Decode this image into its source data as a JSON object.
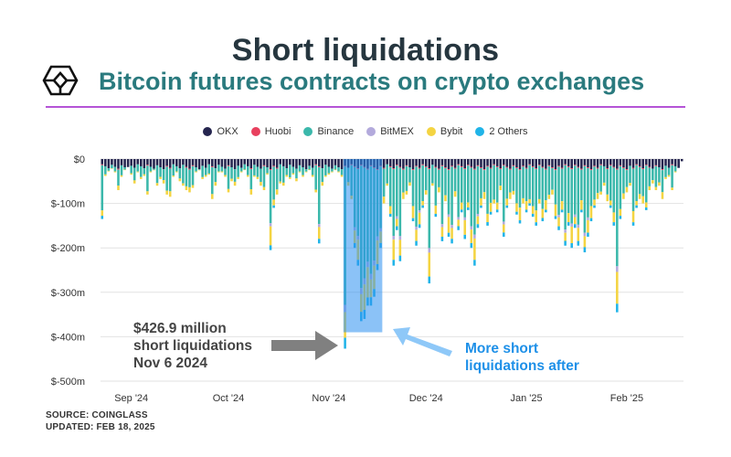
{
  "header": {
    "title": "Short liquidations",
    "subtitle": "Bitcoin futures contracts on crypto exchanges"
  },
  "legend": [
    {
      "label": "OKX",
      "color": "#25254f"
    },
    {
      "label": "Huobi",
      "color": "#e8405e"
    },
    {
      "label": "Binance",
      "color": "#3bb8ab"
    },
    {
      "label": "BitMEX",
      "color": "#b3aadc"
    },
    {
      "label": "Bybit",
      "color": "#f4d442"
    },
    {
      "label": "2 Others",
      "color": "#20b4e8"
    }
  ],
  "footer": {
    "source": "SOURCE: COINGLASS",
    "updated": "UPDATED: FEB 18, 2025"
  },
  "annotations": {
    "peak_line1": "$426.9 million",
    "peak_line2": "short liquidations",
    "peak_line3": "Nov 6 2024",
    "after_line1": "More short",
    "after_line2": "liquidations after"
  },
  "chart_data": {
    "type": "bar",
    "stacked": true,
    "direction": "negative",
    "title": "Short liquidations",
    "subtitle": "Bitcoin futures contracts on crypto exchanges",
    "unit": "USD",
    "ylim": [
      -500,
      0
    ],
    "y_ticks": [
      0,
      -100,
      -200,
      -300,
      -400,
      -500
    ],
    "y_tick_labels": [
      "$0",
      "$-100m",
      "$-200m",
      "$-300m",
      "$-400m",
      "$-500m"
    ],
    "x_tick_labels": [
      "Sep '24",
      "Oct '24",
      "Nov '24",
      "Dec '24",
      "Jan '25",
      "Feb '25"
    ],
    "x_range": [
      "2024-08-23",
      "2025-02-18"
    ],
    "grid": true,
    "legend_position": "top",
    "series_names": [
      "OKX",
      "Huobi",
      "Binance",
      "BitMEX",
      "Bybit",
      "2 Others"
    ],
    "series_colors": [
      "#25254f",
      "#e8405e",
      "#3bb8ab",
      "#b3aadc",
      "#f4d442",
      "#20b4e8"
    ],
    "highlight": {
      "start": "2024-11-06",
      "end": "2024-11-17",
      "peak_date": "2024-11-06",
      "peak_value": -426.9
    },
    "days": [
      {
        "date": "2024-08-23",
        "total": -135
      },
      {
        "date": "2024-08-24",
        "total": -38
      },
      {
        "date": "2024-08-25",
        "total": -28
      },
      {
        "date": "2024-08-26",
        "total": -22
      },
      {
        "date": "2024-08-27",
        "total": -30
      },
      {
        "date": "2024-08-28",
        "total": -70
      },
      {
        "date": "2024-08-29",
        "total": -40
      },
      {
        "date": "2024-08-30",
        "total": -25
      },
      {
        "date": "2024-08-31",
        "total": -18
      },
      {
        "date": "2024-09-01",
        "total": -35
      },
      {
        "date": "2024-09-02",
        "total": -55
      },
      {
        "date": "2024-09-03",
        "total": -30
      },
      {
        "date": "2024-09-04",
        "total": -45
      },
      {
        "date": "2024-09-05",
        "total": -38
      },
      {
        "date": "2024-09-06",
        "total": -80
      },
      {
        "date": "2024-09-07",
        "total": -30
      },
      {
        "date": "2024-09-08",
        "total": -25
      },
      {
        "date": "2024-09-09",
        "total": -60
      },
      {
        "date": "2024-09-10",
        "total": -45
      },
      {
        "date": "2024-09-11",
        "total": -55
      },
      {
        "date": "2024-09-12",
        "total": -80
      },
      {
        "date": "2024-09-13",
        "total": -85
      },
      {
        "date": "2024-09-14",
        "total": -40
      },
      {
        "date": "2024-09-15",
        "total": -30
      },
      {
        "date": "2024-09-16",
        "total": -50
      },
      {
        "date": "2024-09-17",
        "total": -60
      },
      {
        "date": "2024-09-18",
        "total": -70
      },
      {
        "date": "2024-09-19",
        "total": -75
      },
      {
        "date": "2024-09-20",
        "total": -65
      },
      {
        "date": "2024-09-21",
        "total": -30
      },
      {
        "date": "2024-09-22",
        "total": -25
      },
      {
        "date": "2024-09-23",
        "total": -45
      },
      {
        "date": "2024-09-24",
        "total": -40
      },
      {
        "date": "2024-09-25",
        "total": -35
      },
      {
        "date": "2024-09-26",
        "total": -90
      },
      {
        "date": "2024-09-27",
        "total": -60
      },
      {
        "date": "2024-09-28",
        "total": -30
      },
      {
        "date": "2024-09-29",
        "total": -30
      },
      {
        "date": "2024-09-30",
        "total": -40
      },
      {
        "date": "2024-10-01",
        "total": -75
      },
      {
        "date": "2024-10-02",
        "total": -50
      },
      {
        "date": "2024-10-03",
        "total": -60
      },
      {
        "date": "2024-10-04",
        "total": -45
      },
      {
        "date": "2024-10-05",
        "total": -30
      },
      {
        "date": "2024-10-06",
        "total": -25
      },
      {
        "date": "2024-10-07",
        "total": -40
      },
      {
        "date": "2024-10-08",
        "total": -80
      },
      {
        "date": "2024-10-09",
        "total": -40
      },
      {
        "date": "2024-10-10",
        "total": -45
      },
      {
        "date": "2024-10-11",
        "total": -60
      },
      {
        "date": "2024-10-12",
        "total": -70
      },
      {
        "date": "2024-10-13",
        "total": -35
      },
      {
        "date": "2024-10-14",
        "total": -205
      },
      {
        "date": "2024-10-15",
        "total": -110
      },
      {
        "date": "2024-10-16",
        "total": -80
      },
      {
        "date": "2024-10-17",
        "total": -55
      },
      {
        "date": "2024-10-18",
        "total": -60
      },
      {
        "date": "2024-10-19",
        "total": -40
      },
      {
        "date": "2024-10-20",
        "total": -45
      },
      {
        "date": "2024-10-21",
        "total": -35
      },
      {
        "date": "2024-10-22",
        "total": -50
      },
      {
        "date": "2024-10-23",
        "total": -30
      },
      {
        "date": "2024-10-24",
        "total": -40
      },
      {
        "date": "2024-10-25",
        "total": -30
      },
      {
        "date": "2024-10-26",
        "total": -25
      },
      {
        "date": "2024-10-27",
        "total": -40
      },
      {
        "date": "2024-10-28",
        "total": -75
      },
      {
        "date": "2024-10-29",
        "total": -190
      },
      {
        "date": "2024-10-30",
        "total": -60
      },
      {
        "date": "2024-10-31",
        "total": -40
      },
      {
        "date": "2024-11-01",
        "total": -35
      },
      {
        "date": "2024-11-02",
        "total": -30
      },
      {
        "date": "2024-11-03",
        "total": -25
      },
      {
        "date": "2024-11-04",
        "total": -30
      },
      {
        "date": "2024-11-05",
        "total": -40
      },
      {
        "date": "2024-11-06",
        "total": -426.9
      },
      {
        "date": "2024-11-07",
        "total": -60
      },
      {
        "date": "2024-11-08",
        "total": -90
      },
      {
        "date": "2024-11-09",
        "total": -200
      },
      {
        "date": "2024-11-10",
        "total": -240
      },
      {
        "date": "2024-11-11",
        "total": -365
      },
      {
        "date": "2024-11-12",
        "total": -360
      },
      {
        "date": "2024-11-13",
        "total": -330
      },
      {
        "date": "2024-11-14",
        "total": -330
      },
      {
        "date": "2024-11-15",
        "total": -310
      },
      {
        "date": "2024-11-16",
        "total": -250
      },
      {
        "date": "2024-11-17",
        "total": -200
      },
      {
        "date": "2024-11-18",
        "total": -100
      },
      {
        "date": "2024-11-19",
        "total": -60
      },
      {
        "date": "2024-11-20",
        "total": -130
      },
      {
        "date": "2024-11-21",
        "total": -240
      },
      {
        "date": "2024-11-22",
        "total": -160
      },
      {
        "date": "2024-11-23",
        "total": -230
      },
      {
        "date": "2024-11-24",
        "total": -90
      },
      {
        "date": "2024-11-25",
        "total": -80
      },
      {
        "date": "2024-11-26",
        "total": -60
      },
      {
        "date": "2024-11-27",
        "total": -140
      },
      {
        "date": "2024-11-28",
        "total": -195
      },
      {
        "date": "2024-11-29",
        "total": -155
      },
      {
        "date": "2024-11-30",
        "total": -110
      },
      {
        "date": "2024-12-01",
        "total": -80
      },
      {
        "date": "2024-12-02",
        "total": -280
      },
      {
        "date": "2024-12-03",
        "total": -60
      },
      {
        "date": "2024-12-04",
        "total": -130
      },
      {
        "date": "2024-12-05",
        "total": -75
      },
      {
        "date": "2024-12-06",
        "total": -185
      },
      {
        "date": "2024-12-07",
        "total": -95
      },
      {
        "date": "2024-12-08",
        "total": -175
      },
      {
        "date": "2024-12-09",
        "total": -190
      },
      {
        "date": "2024-12-10",
        "total": -85
      },
      {
        "date": "2024-12-11",
        "total": -160
      },
      {
        "date": "2024-12-12",
        "total": -120
      },
      {
        "date": "2024-12-13",
        "total": -180
      },
      {
        "date": "2024-12-14",
        "total": -115
      },
      {
        "date": "2024-12-15",
        "total": -200
      },
      {
        "date": "2024-12-16",
        "total": -240
      },
      {
        "date": "2024-12-17",
        "total": -155
      },
      {
        "date": "2024-12-18",
        "total": -110
      },
      {
        "date": "2024-12-19",
        "total": -90
      },
      {
        "date": "2024-12-20",
        "total": -150
      },
      {
        "date": "2024-12-21",
        "total": -125
      },
      {
        "date": "2024-12-22",
        "total": -100
      },
      {
        "date": "2024-12-23",
        "total": -120
      },
      {
        "date": "2024-12-24",
        "total": -70
      },
      {
        "date": "2024-12-25",
        "total": -175
      },
      {
        "date": "2024-12-26",
        "total": -110
      },
      {
        "date": "2024-12-27",
        "total": -90
      },
      {
        "date": "2024-12-28",
        "total": -80
      },
      {
        "date": "2024-12-29",
        "total": -125
      },
      {
        "date": "2024-12-30",
        "total": -145
      },
      {
        "date": "2024-12-31",
        "total": -100
      },
      {
        "date": "2025-01-01",
        "total": -120
      },
      {
        "date": "2025-01-02",
        "total": -105
      },
      {
        "date": "2025-01-03",
        "total": -130
      },
      {
        "date": "2025-01-04",
        "total": -150
      },
      {
        "date": "2025-01-05",
        "total": -100
      },
      {
        "date": "2025-01-06",
        "total": -140
      },
      {
        "date": "2025-01-07",
        "total": -120
      },
      {
        "date": "2025-01-08",
        "total": -90
      },
      {
        "date": "2025-01-09",
        "total": -80
      },
      {
        "date": "2025-01-10",
        "total": -135
      },
      {
        "date": "2025-01-11",
        "total": -160
      },
      {
        "date": "2025-01-12",
        "total": -120
      },
      {
        "date": "2025-01-13",
        "total": -195
      },
      {
        "date": "2025-01-14",
        "total": -150
      },
      {
        "date": "2025-01-15",
        "total": -200
      },
      {
        "date": "2025-01-16",
        "total": -155
      },
      {
        "date": "2025-01-17",
        "total": -195
      },
      {
        "date": "2025-01-18",
        "total": -120
      },
      {
        "date": "2025-01-19",
        "total": -210
      },
      {
        "date": "2025-01-20",
        "total": -175
      },
      {
        "date": "2025-01-21",
        "total": -140
      },
      {
        "date": "2025-01-22",
        "total": -110
      },
      {
        "date": "2025-01-23",
        "total": -90
      },
      {
        "date": "2025-01-24",
        "total": -80
      },
      {
        "date": "2025-01-25",
        "total": -60
      },
      {
        "date": "2025-01-26",
        "total": -95
      },
      {
        "date": "2025-01-27",
        "total": -110
      },
      {
        "date": "2025-01-28",
        "total": -150
      },
      {
        "date": "2025-01-29",
        "total": -345
      },
      {
        "date": "2025-01-30",
        "total": -135
      },
      {
        "date": "2025-01-31",
        "total": -90
      },
      {
        "date": "2025-02-01",
        "total": -75
      },
      {
        "date": "2025-02-02",
        "total": -60
      },
      {
        "date": "2025-02-03",
        "total": -150
      },
      {
        "date": "2025-02-04",
        "total": -110
      },
      {
        "date": "2025-02-05",
        "total": -90
      },
      {
        "date": "2025-02-06",
        "total": -100
      },
      {
        "date": "2025-02-07",
        "total": -115
      },
      {
        "date": "2025-02-08",
        "total": -70
      },
      {
        "date": "2025-02-09",
        "total": -55
      },
      {
        "date": "2025-02-10",
        "total": -70
      },
      {
        "date": "2025-02-11",
        "total": -60
      },
      {
        "date": "2025-02-12",
        "total": -90
      },
      {
        "date": "2025-02-13",
        "total": -45
      },
      {
        "date": "2025-02-14",
        "total": -40
      },
      {
        "date": "2025-02-15",
        "total": -70
      },
      {
        "date": "2025-02-16",
        "total": -30
      },
      {
        "date": "2025-02-17",
        "total": -20
      },
      {
        "date": "2025-02-18",
        "total": -5
      }
    ]
  }
}
